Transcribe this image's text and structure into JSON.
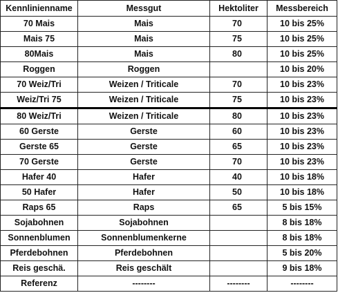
{
  "table": {
    "headers": [
      "Kennlinienname",
      "Messgut",
      "Hektoliter",
      "Messbereich"
    ],
    "rows": [
      [
        "70 Mais",
        "Mais",
        "70",
        "10 bis 25%"
      ],
      [
        "Mais 75",
        "Mais",
        "75",
        "10 bis 25%"
      ],
      [
        "80Mais",
        "Mais",
        "80",
        "10 bis 25%"
      ],
      [
        "Roggen",
        "Roggen",
        "",
        "10 bis 20%"
      ],
      [
        "70 Weiz/Tri",
        "Weizen / Triticale",
        "70",
        "10 bis 23%"
      ],
      [
        "Weiz/Tri 75",
        "Weizen / Triticale",
        "75",
        "10 bis 23%"
      ],
      [
        "80 Weiz/Tri",
        "Weizen / Triticale",
        "80",
        "10 bis 23%"
      ],
      [
        "60 Gerste",
        "Gerste",
        "60",
        "10 bis 23%"
      ],
      [
        "Gerste 65",
        "Gerste",
        "65",
        "10 bis 23%"
      ],
      [
        "70 Gerste",
        "Gerste",
        "70",
        "10 bis 23%"
      ],
      [
        "Hafer 40",
        "Hafer",
        "40",
        "10 bis 18%"
      ],
      [
        "50 Hafer",
        "Hafer",
        "50",
        "10 bis 18%"
      ],
      [
        "Raps 65",
        "Raps",
        "65",
        "5 bis 15%"
      ],
      [
        "Sojabohnen",
        "Sojabohnen",
        "",
        "8 bis 18%"
      ],
      [
        "Sonnenblumen",
        "Sonnenblumenkerne",
        "",
        "8 bis 18%"
      ],
      [
        "Pferdebohnen",
        "Pferdebohnen",
        "",
        "5 bis 20%"
      ],
      [
        "Reis geschä.",
        "Reis geschält",
        "",
        "9 bis 18%"
      ],
      [
        "Referenz",
        "--------",
        "--------",
        "--------"
      ]
    ]
  }
}
